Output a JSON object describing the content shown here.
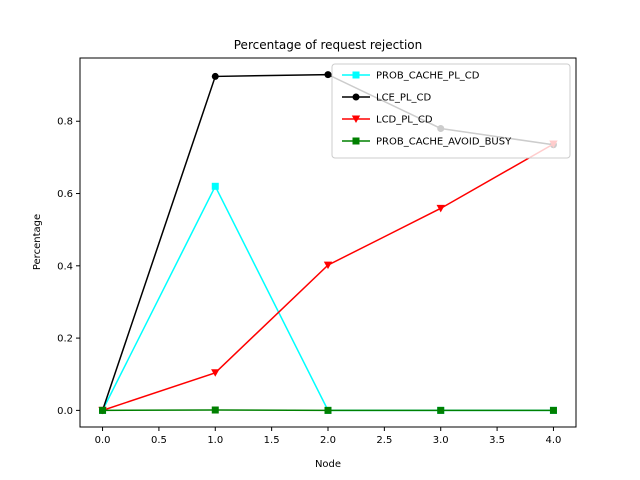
{
  "chart_data": {
    "type": "line",
    "title": "Percentage of request rejection",
    "xlabel": "Node",
    "ylabel": "Percentage",
    "x": [
      0,
      1,
      2,
      3,
      4
    ],
    "xlim": [
      -0.2,
      4.2
    ],
    "ylim": [
      -0.046,
      0.975
    ],
    "xticks": [
      0.0,
      0.5,
      1.0,
      1.5,
      2.0,
      2.5,
      3.0,
      3.5,
      4.0
    ],
    "xtick_labels": [
      "0.0",
      "0.5",
      "1.0",
      "1.5",
      "2.0",
      "2.5",
      "3.0",
      "3.5",
      "4.0"
    ],
    "yticks": [
      0.0,
      0.2,
      0.4,
      0.6,
      0.8
    ],
    "ytick_labels": [
      "0.0",
      "0.2",
      "0.4",
      "0.6",
      "0.8"
    ],
    "grid": false,
    "legend_position": "top-right",
    "series": [
      {
        "name": "PROB_CACHE_PL_CD",
        "color": "#00ffff",
        "marker": "square",
        "values": [
          0.0,
          0.62,
          0.0,
          0.0,
          0.0
        ]
      },
      {
        "name": "LCE_PL_CD",
        "color": "#000000",
        "marker": "circle",
        "values": [
          0.0,
          0.924,
          0.929,
          0.78,
          0.735
        ]
      },
      {
        "name": "LCD_PL_CD",
        "color": "#ff0000",
        "marker": "triangle-down",
        "values": [
          0.0,
          0.104,
          0.402,
          0.559,
          0.737
        ]
      },
      {
        "name": "PROB_CACHE_AVOID_BUSY",
        "color": "#008000",
        "marker": "square",
        "values": [
          0.0,
          0.001,
          0.0,
          0.0,
          0.0
        ]
      }
    ]
  }
}
